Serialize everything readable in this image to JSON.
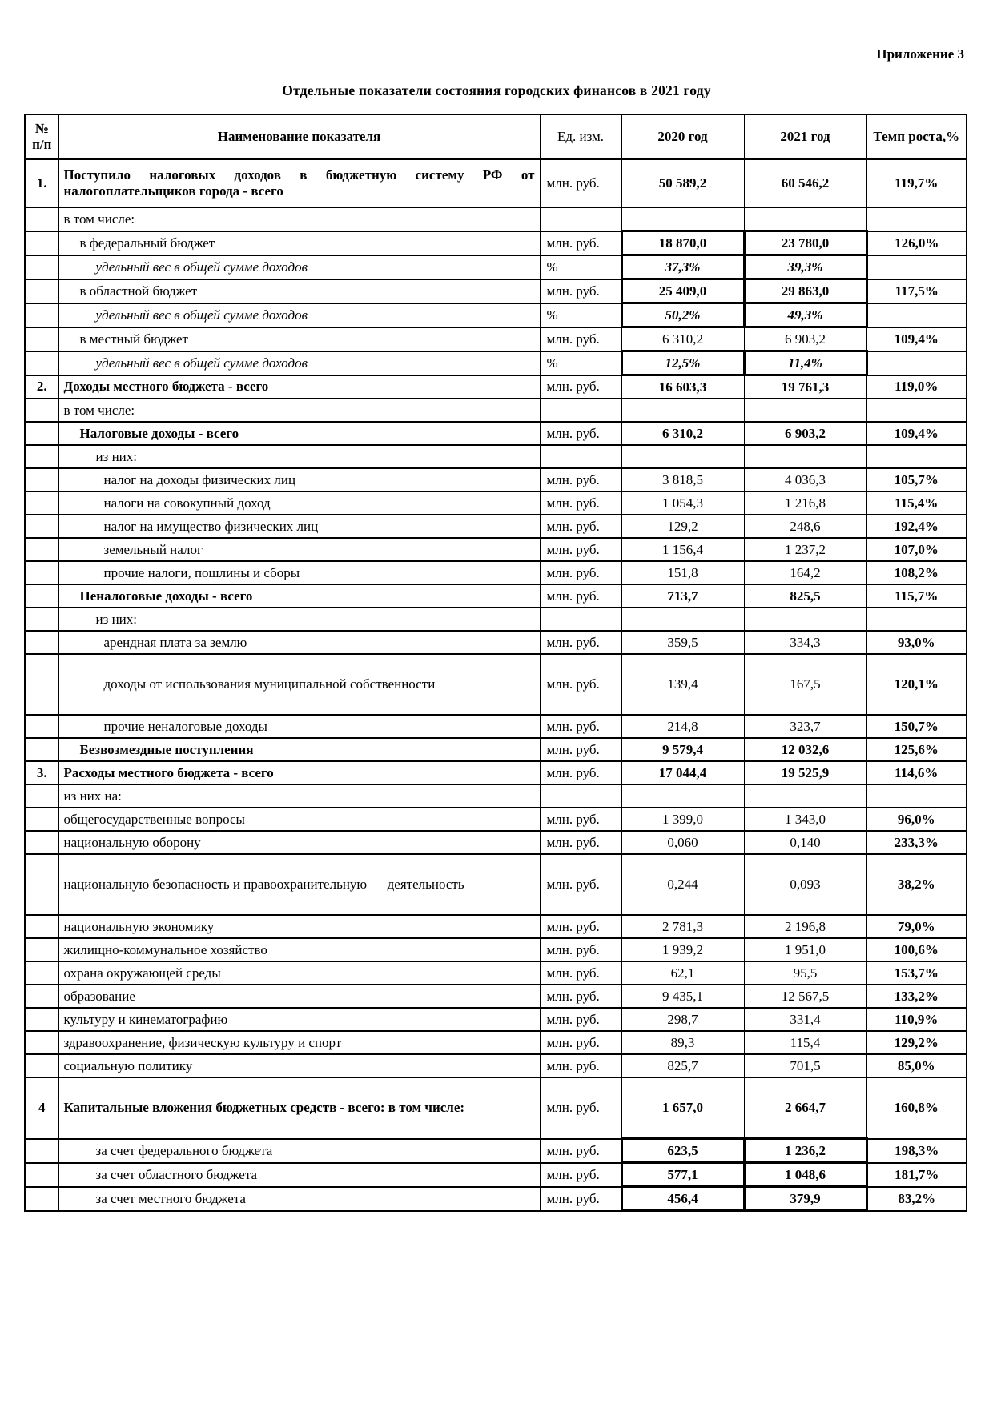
{
  "annex": "Приложение 3",
  "title": "Отдельные показатели состояния городских финансов в 2021 году",
  "table": {
    "columns": [
      "№ п/п",
      "Наименование показателя",
      "Ед. изм.",
      "2020 год",
      "2021 год",
      "Темп роста,%"
    ],
    "rows": [
      {
        "num": "1.",
        "name": "Поступило налоговых доходов в бюджетную систему РФ от налогоплательщиков города - всего",
        "unit": "млн. руб.",
        "v2020": "50 589,2",
        "v2021": "60 546,2",
        "growth": "119,7%",
        "cls": "bold vbold justify h2"
      },
      {
        "num": "",
        "name": "в том числе:",
        "unit": "",
        "v2020": "",
        "v2021": "",
        "growth": "",
        "cls": ""
      },
      {
        "num": "",
        "name": "в федеральный бюджет",
        "unit": "млн. руб.",
        "v2020": "18 870,0",
        "v2021": "23 780,0",
        "growth": "126,0%",
        "cls": "ind1 vbold box"
      },
      {
        "num": "",
        "name": "удельный вес в общей сумме доходов",
        "unit": "%",
        "v2020": "37,3%",
        "v2021": "39,3%",
        "growth": "",
        "cls": "ind2 italic vbold vitalic box"
      },
      {
        "num": "",
        "name": "в областной бюджет",
        "unit": "млн. руб.",
        "v2020": "25 409,0",
        "v2021": "29 863,0",
        "growth": "117,5%",
        "cls": "ind1 vbold box"
      },
      {
        "num": "",
        "name": "удельный вес в общей сумме доходов",
        "unit": "%",
        "v2020": "50,2%",
        "v2021": "49,3%",
        "growth": "",
        "cls": "ind2 italic vbold vitalic box"
      },
      {
        "num": "",
        "name": "в местный бюджет",
        "unit": "млн. руб.",
        "v2020": "6 310,2",
        "v2021": "6 903,2",
        "growth": "109,4%",
        "cls": "ind1"
      },
      {
        "num": "",
        "name": "удельный вес в общей сумме доходов",
        "unit": "%",
        "v2020": "12,5%",
        "v2021": "11,4%",
        "growth": "",
        "cls": "ind2 italic vbold vitalic box"
      },
      {
        "num": "2.",
        "name": "Доходы местного бюджета - всего",
        "unit": "млн. руб.",
        "v2020": "16 603,3",
        "v2021": "19 761,3",
        "growth": "119,0%",
        "cls": "bold vbold"
      },
      {
        "num": "",
        "name": "в том числе:",
        "unit": "",
        "v2020": "",
        "v2021": "",
        "growth": "",
        "cls": ""
      },
      {
        "num": "",
        "name": "Налоговые доходы - всего",
        "unit": "млн. руб.",
        "v2020": "6 310,2",
        "v2021": "6 903,2",
        "growth": "109,4%",
        "cls": "ind1 bold vbold"
      },
      {
        "num": "",
        "name": "из них:",
        "unit": "",
        "v2020": "",
        "v2021": "",
        "growth": "",
        "cls": "ind2"
      },
      {
        "num": "",
        "name": "налог на доходы физических лиц",
        "unit": "млн. руб.",
        "v2020": "3 818,5",
        "v2021": "4 036,3",
        "growth": "105,7%",
        "cls": "ind3"
      },
      {
        "num": "",
        "name": "налоги на совокупный доход",
        "unit": "млн. руб.",
        "v2020": "1 054,3",
        "v2021": "1 216,8",
        "growth": "115,4%",
        "cls": "ind3"
      },
      {
        "num": "",
        "name": "налог на имущество физических лиц",
        "unit": "млн. руб.",
        "v2020": "129,2",
        "v2021": "248,6",
        "growth": "192,4%",
        "cls": "ind3"
      },
      {
        "num": "",
        "name": "земельный налог",
        "unit": "млн. руб.",
        "v2020": "1 156,4",
        "v2021": "1 237,2",
        "growth": "107,0%",
        "cls": "ind3"
      },
      {
        "num": "",
        "name": "прочие налоги, пошлины и сборы",
        "unit": "млн. руб.",
        "v2020": "151,8",
        "v2021": "164,2",
        "growth": "108,2%",
        "cls": "ind3"
      },
      {
        "num": "",
        "name": "Неналоговые доходы - всего",
        "unit": "млн. руб.",
        "v2020": "713,7",
        "v2021": "825,5",
        "growth": "115,7%",
        "cls": "ind1 bold vbold"
      },
      {
        "num": "",
        "name": "из них:",
        "unit": "",
        "v2020": "",
        "v2021": "",
        "growth": "",
        "cls": "ind2"
      },
      {
        "num": "",
        "name": "арендная плата за землю",
        "unit": "млн. руб.",
        "v2020": "359,5",
        "v2021": "334,3",
        "growth": "93,0%",
        "cls": "ind3"
      },
      {
        "num": "",
        "name": "доходы от использования муниципальной собственности",
        "unit": "млн. руб.",
        "v2020": "139,4",
        "v2021": "167,5",
        "growth": "120,1%",
        "cls": "ind3 tall"
      },
      {
        "num": "",
        "name": "прочие неналоговые доходы",
        "unit": "млн. руб.",
        "v2020": "214,8",
        "v2021": "323,7",
        "growth": "150,7%",
        "cls": "ind3"
      },
      {
        "num": "",
        "name": "Безвозмездные поступления",
        "unit": "млн. руб.",
        "v2020": "9 579,4",
        "v2021": "12 032,6",
        "growth": "125,6%",
        "cls": "ind1 bold vbold"
      },
      {
        "num": "3.",
        "name": "Расходы местного бюджета - всего",
        "unit": "млн. руб.",
        "v2020": "17 044,4",
        "v2021": "19 525,9",
        "growth": "114,6%",
        "cls": "bold vbold"
      },
      {
        "num": "",
        "name": "из них на:",
        "unit": "",
        "v2020": "",
        "v2021": "",
        "growth": "",
        "cls": ""
      },
      {
        "num": "",
        "name": "общегосударственные вопросы",
        "unit": "млн. руб.",
        "v2020": "1 399,0",
        "v2021": "1 343,0",
        "growth": "96,0%",
        "cls": ""
      },
      {
        "num": "",
        "name": "национальную оборону",
        "unit": "млн. руб.",
        "v2020": "0,060",
        "v2021": "0,140",
        "growth": "233,3%",
        "cls": ""
      },
      {
        "num": "",
        "name": "национальную безопасность и правоохранительную      деятельность",
        "unit": "млн. руб.",
        "v2020": "0,244",
        "v2021": "0,093",
        "growth": "38,2%",
        "cls": "tall"
      },
      {
        "num": "",
        "name": "национальную экономику",
        "unit": "млн. руб.",
        "v2020": "2 781,3",
        "v2021": "2 196,8",
        "growth": "79,0%",
        "cls": ""
      },
      {
        "num": "",
        "name": "жилищно-коммунальное хозяйство",
        "unit": "млн. руб.",
        "v2020": "1 939,2",
        "v2021": "1 951,0",
        "growth": "100,6%",
        "cls": ""
      },
      {
        "num": "",
        "name": "охрана окружающей среды",
        "unit": "млн. руб.",
        "v2020": "62,1",
        "v2021": "95,5",
        "growth": "153,7%",
        "cls": ""
      },
      {
        "num": "",
        "name": "образование",
        "unit": "млн. руб.",
        "v2020": "9 435,1",
        "v2021": "12 567,5",
        "growth": "133,2%",
        "cls": ""
      },
      {
        "num": "",
        "name": "культуру и кинематографию",
        "unit": "млн. руб.",
        "v2020": "298,7",
        "v2021": "331,4",
        "growth": "110,9%",
        "cls": ""
      },
      {
        "num": "",
        "name": "здравоохранение, физическую культуру и спорт",
        "unit": "млн. руб.",
        "v2020": "89,3",
        "v2021": "115,4",
        "growth": "129,2%",
        "cls": ""
      },
      {
        "num": "",
        "name": "социальную политику",
        "unit": "млн. руб.",
        "v2020": "825,7",
        "v2021": "701,5",
        "growth": "85,0%",
        "cls": ""
      },
      {
        "num": "4",
        "name": "Капитальные вложения бюджетных средств - всего: в том числе:",
        "unit": "млн. руб.",
        "v2020": "1 657,0",
        "v2021": "2 664,7",
        "growth": "160,8%",
        "cls": "bold vbold tall"
      },
      {
        "num": "",
        "name": "за счет федерального бюджета",
        "unit": "млн. руб.",
        "v2020": "623,5",
        "v2021": "1 236,2",
        "growth": "198,3%",
        "cls": "ind2 vbold box"
      },
      {
        "num": "",
        "name": "за счет областного бюджета",
        "unit": "млн. руб.",
        "v2020": "577,1",
        "v2021": "1 048,6",
        "growth": "181,7%",
        "cls": "ind2 vbold box"
      },
      {
        "num": "",
        "name": "за счет местного бюджета",
        "unit": "млн. руб.",
        "v2020": "456,4",
        "v2021": "379,9",
        "growth": "83,2%",
        "cls": "ind2 vbold box"
      }
    ]
  }
}
